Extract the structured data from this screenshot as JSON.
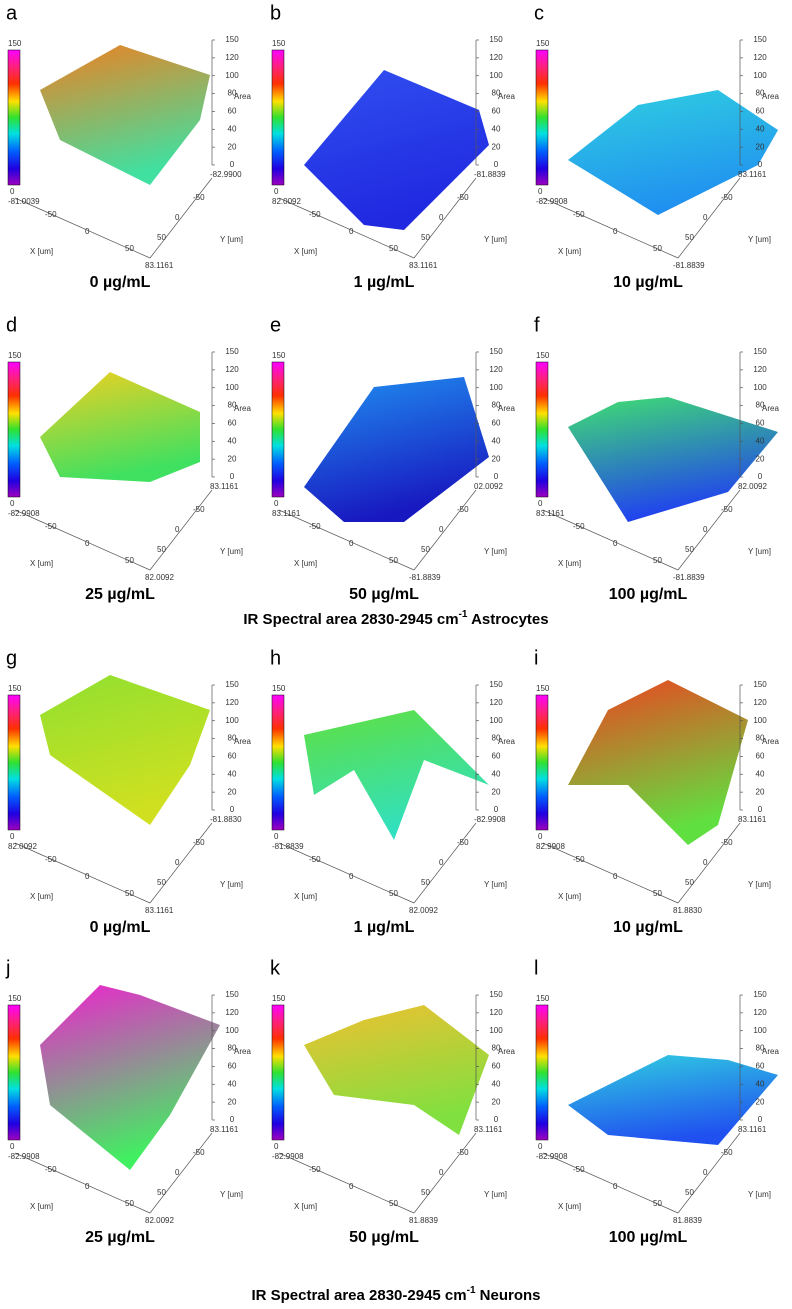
{
  "figure": {
    "colorbar_max": "150",
    "colorbar_min": "0",
    "z_ticks": [
      "150",
      "120",
      "100",
      "80",
      "60",
      "40",
      "20",
      "0"
    ],
    "z_label": "Area",
    "floor_ticks": [
      "-50",
      "0",
      "50"
    ],
    "x_label": "X [um]",
    "y_label": "Y [um]",
    "panels": [
      {
        "letter": "a",
        "label": "0  µg/mL",
        "corners": [
          "-82.9900",
          "-81.0039",
          "83.1161"
        ],
        "colors": [
          "#f08020",
          "#40e0a0"
        ]
      },
      {
        "letter": "b",
        "label": "1  µg/mL",
        "corners": [
          "-81.8839",
          "82.0092",
          "83.1161"
        ],
        "colors": [
          "#3050f0",
          "#2028e0"
        ]
      },
      {
        "letter": "c",
        "label": "10  µg/mL",
        "corners": [
          "83.1161",
          "-82.9908",
          "-81.8839"
        ],
        "colors": [
          "#30d0e0",
          "#2090f0"
        ]
      },
      {
        "letter": "d",
        "label": "25  µg/mL",
        "corners": [
          "83.1161",
          "-82.9908",
          "82.0092"
        ],
        "colors": [
          "#f0d020",
          "#40e060"
        ]
      },
      {
        "letter": "e",
        "label": "50  µg/mL",
        "corners": [
          "02.0092",
          "83.1161",
          "-81.8839"
        ],
        "colors": [
          "#2090f0",
          "#1818c0"
        ]
      },
      {
        "letter": "f",
        "label": "100  µg/mL",
        "corners": [
          "82.0092",
          "83.1161",
          "-81.8839"
        ],
        "colors": [
          "#40e070",
          "#2040f0"
        ]
      },
      {
        "letter": "g",
        "label": "0  µg/mL",
        "corners": [
          "-81.8830",
          "82.0092",
          "83.1161"
        ],
        "colors": [
          "#90e030",
          "#d0e020"
        ]
      },
      {
        "letter": "h",
        "label": "1  µg/mL",
        "corners": [
          "-82.9908",
          "-81.8839",
          "82.0092"
        ],
        "colors": [
          "#60e040",
          "#30e0c0"
        ]
      },
      {
        "letter": "i",
        "label": "10  µg/mL",
        "corners": [
          "83.1161",
          "82.9908",
          "81.8830"
        ],
        "colors": [
          "#f04020",
          "#60e040"
        ]
      },
      {
        "letter": "j",
        "label": "25  µg/mL",
        "corners": [
          "83.1161",
          "-82.9908",
          "82.0092"
        ],
        "colors": [
          "#f020d0",
          "#40f060"
        ]
      },
      {
        "letter": "k",
        "label": "50  µg/mL",
        "corners": [
          "83.1161",
          "-82.9908",
          "81.8839"
        ],
        "colors": [
          "#f0c030",
          "#80e040"
        ]
      },
      {
        "letter": "l",
        "label": "100  µg/mL",
        "corners": [
          "83.1161",
          "-82.9908",
          "81.8839"
        ],
        "colors": [
          "#30d0e0",
          "#2050f0"
        ]
      }
    ],
    "captions": [
      {
        "text": "IR Spectral  area 2830-2945 cm",
        "sup": "-1",
        "tail": " Astrocytes"
      },
      {
        "text": "IR Spectral  area 2830-2945 cm",
        "sup": "-1",
        "tail": " Neurons"
      }
    ]
  }
}
